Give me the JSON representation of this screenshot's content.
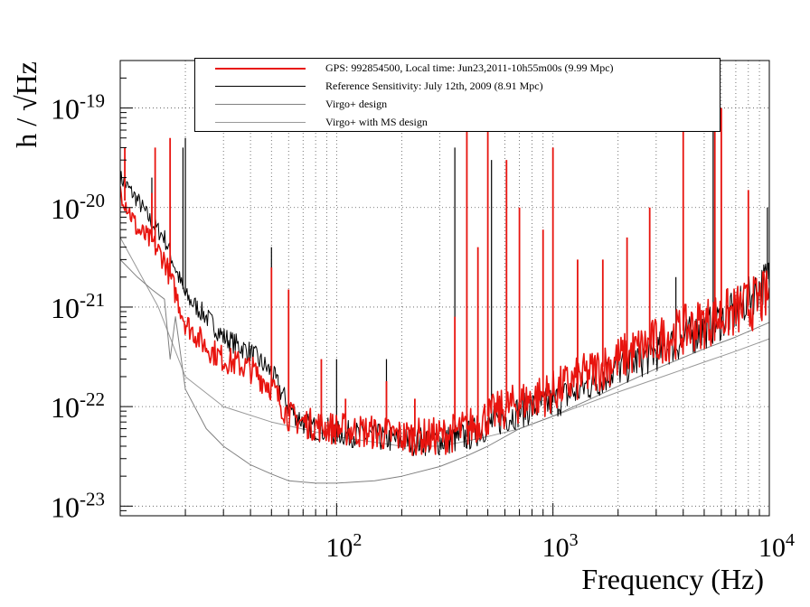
{
  "colors": {
    "current": "#e8140f",
    "reference": "#000000",
    "design": "#808080",
    "ms_design": "#999999",
    "grid": "#555555"
  },
  "axes": {
    "xlabel": "Frequency (Hz)",
    "ylabel": "h / √Hz",
    "x_ticks": [
      {
        "base": "10",
        "exp": "2"
      },
      {
        "base": "10",
        "exp": "3"
      },
      {
        "base": "10",
        "exp": "4"
      }
    ],
    "y_ticks": [
      {
        "base": "10",
        "exp": "-19"
      },
      {
        "base": "10",
        "exp": "-20"
      },
      {
        "base": "10",
        "exp": "-21"
      },
      {
        "base": "10",
        "exp": "-22"
      },
      {
        "base": "10",
        "exp": "-23"
      }
    ]
  },
  "legend": [
    {
      "label": "GPS: 992854500, Local time: Jun23,2011-10h55m00s (9.99 Mpc)",
      "color": "#e8140f",
      "width": 2
    },
    {
      "label": "Reference Sensitivity: July 12th, 2009 (8.91 Mpc)",
      "color": "#000000",
      "width": 1
    },
    {
      "label": "Virgo+ design",
      "color": "#808080",
      "width": 1
    },
    {
      "label": "Virgo+ with MS design",
      "color": "#999999",
      "width": 1
    }
  ],
  "chart_data": {
    "type": "line",
    "title": "",
    "xlabel": "Frequency (Hz)",
    "ylabel": "h / √Hz",
    "x_scale": "log",
    "y_scale": "log",
    "xlim": [
      10,
      10000
    ],
    "ylim": [
      8e-24,
      3e-19
    ],
    "grid": true,
    "legend_position": "top",
    "series": [
      {
        "name": "GPS: 992854500, Local time: Jun23,2011-10h55m00s (9.99 Mpc)",
        "x": [
          10,
          12,
          14,
          16,
          20,
          25,
          30,
          40,
          50,
          60,
          70,
          80,
          100,
          150,
          200,
          300,
          400,
          500,
          700,
          1000,
          1500,
          2000,
          3000,
          5000,
          7000,
          10000
        ],
        "y": [
          1.5e-20,
          6e-21,
          4.5e-21,
          3e-21,
          7e-22,
          4e-22,
          3e-22,
          2.4e-22,
          1.6e-22,
          8e-23,
          7e-23,
          6.5e-23,
          6e-23,
          5.5e-23,
          5e-23,
          5e-23,
          6e-23,
          8e-23,
          1.1e-22,
          1.4e-22,
          2.2e-22,
          3e-22,
          4.5e-22,
          7e-22,
          9e-22,
          1.3e-21
        ],
        "peaks": [
          {
            "f": 10.5,
            "y": 4e-20
          },
          {
            "f": 14,
            "y": 1.4e-20
          },
          {
            "f": 14.5,
            "y": 4e-20
          },
          {
            "f": 17,
            "y": 5e-20
          },
          {
            "f": 50,
            "y": 2.5e-21
          },
          {
            "f": 60,
            "y": 1.5e-21
          },
          {
            "f": 85,
            "y": 3e-22
          },
          {
            "f": 110,
            "y": 1.2e-22
          },
          {
            "f": 170,
            "y": 1.8e-22
          },
          {
            "f": 230,
            "y": 1.2e-22
          },
          {
            "f": 352,
            "y": 8e-22
          },
          {
            "f": 400,
            "y": 3e-19
          },
          {
            "f": 450,
            "y": 4e-21
          },
          {
            "f": 500,
            "y": 3e-19
          },
          {
            "f": 610,
            "y": 3e-20
          },
          {
            "f": 700,
            "y": 1e-20
          },
          {
            "f": 900,
            "y": 6e-21
          },
          {
            "f": 1000,
            "y": 4e-20
          },
          {
            "f": 1300,
            "y": 3e-21
          },
          {
            "f": 1700,
            "y": 3e-21
          },
          {
            "f": 2200,
            "y": 5e-21
          },
          {
            "f": 2800,
            "y": 1e-20
          },
          {
            "f": 4000,
            "y": 6e-20
          },
          {
            "f": 5600,
            "y": 4e-19
          },
          {
            "f": 6000,
            "y": 1e-19
          },
          {
            "f": 8000,
            "y": 1.5e-20
          }
        ]
      },
      {
        "name": "Reference Sensitivity: July 12th, 2009 (8.91 Mpc)",
        "x": [
          10,
          12,
          14,
          16,
          20,
          25,
          30,
          40,
          50,
          60,
          70,
          80,
          100,
          150,
          200,
          300,
          400,
          500,
          700,
          1000,
          1500,
          2000,
          3000,
          5000,
          7000,
          10000
        ],
        "y": [
          2e-20,
          1.2e-20,
          7e-21,
          5e-21,
          1.3e-21,
          8e-22,
          5e-22,
          3.5e-22,
          2.2e-22,
          1e-22,
          7e-23,
          6e-23,
          5.5e-23,
          5e-23,
          4.5e-23,
          4.5e-23,
          5e-23,
          6.5e-23,
          9e-23,
          1.1e-22,
          1.7e-22,
          2.4e-22,
          3.5e-22,
          6e-22,
          9e-22,
          2e-21
        ],
        "peaks": [
          {
            "f": 14,
            "y": 2e-20
          },
          {
            "f": 19.5,
            "y": 4e-20
          },
          {
            "f": 20,
            "y": 5e-20
          },
          {
            "f": 50,
            "y": 4e-21
          },
          {
            "f": 100,
            "y": 3e-22
          },
          {
            "f": 170,
            "y": 3e-22
          },
          {
            "f": 352,
            "y": 4e-20
          },
          {
            "f": 400,
            "y": 2e-19
          },
          {
            "f": 520,
            "y": 3e-20
          },
          {
            "f": 1000,
            "y": 8e-21
          },
          {
            "f": 3700,
            "y": 2e-21
          },
          {
            "f": 5500,
            "y": 3e-19
          },
          {
            "f": 9800,
            "y": 1e-20
          }
        ]
      },
      {
        "name": "Virgo+ design",
        "x": [
          10,
          12,
          14,
          16,
          17,
          18,
          20,
          25,
          30,
          40,
          50,
          60,
          80,
          100,
          150,
          200,
          300,
          400,
          500,
          700,
          1000,
          1500,
          2000,
          3000,
          5000,
          7000,
          10000
        ],
        "y": [
          3e-21,
          2e-21,
          1.5e-21,
          1.2e-21,
          3e-22,
          8e-22,
          1.5e-22,
          6e-23,
          4e-23,
          2.6e-23,
          2.1e-23,
          1.8e-23,
          1.7e-23,
          1.7e-23,
          1.8e-23,
          2e-23,
          2.5e-23,
          3.2e-23,
          4e-23,
          6e-23,
          8e-23,
          1.2e-22,
          1.6e-22,
          2.4e-22,
          3.8e-22,
          5e-22,
          7e-22
        ]
      },
      {
        "name": "Virgo+ with MS design",
        "x": [
          10,
          15,
          20,
          30,
          50,
          100,
          200,
          300,
          400,
          500,
          700,
          1000,
          2000,
          3000,
          5000,
          7000,
          10000
        ],
        "y": [
          5e-21,
          1e-21,
          2e-22,
          1e-22,
          7e-23,
          5e-23,
          4e-23,
          4e-23,
          4.5e-23,
          5e-23,
          6e-23,
          8e-23,
          1.4e-22,
          1.9e-22,
          2.8e-22,
          3.6e-22,
          4.8e-22
        ]
      }
    ]
  }
}
